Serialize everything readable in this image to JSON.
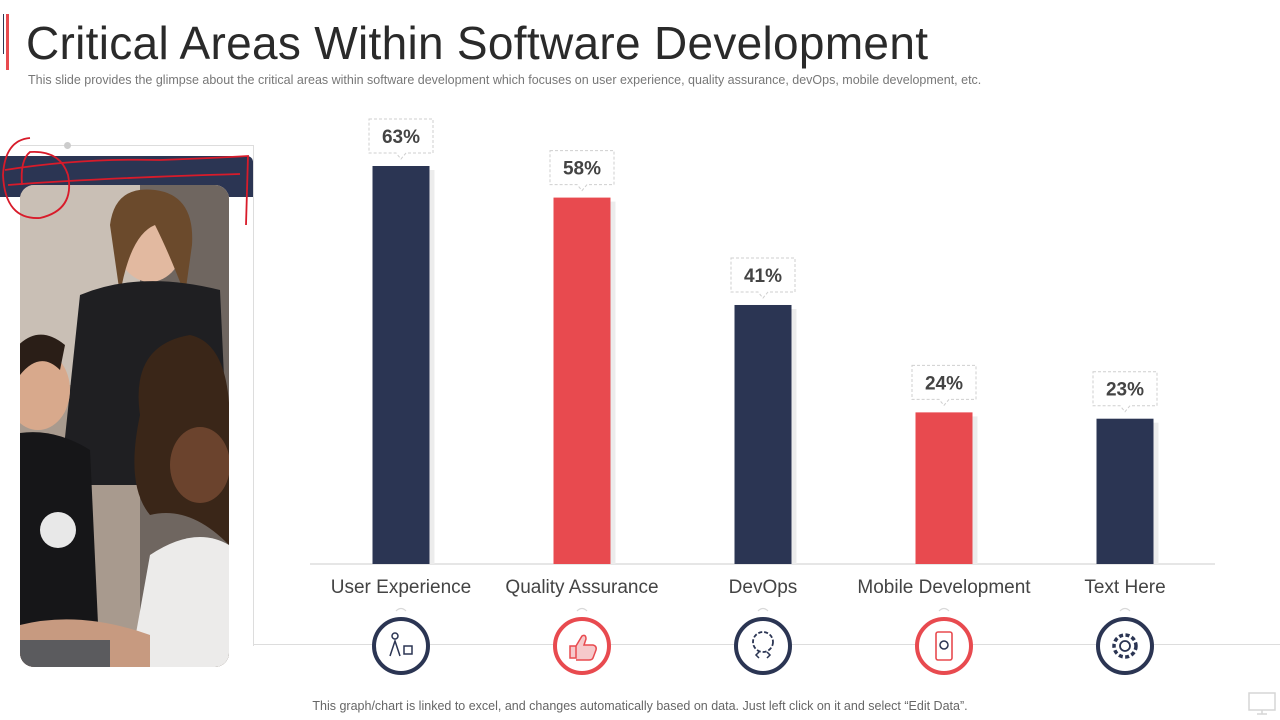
{
  "slide": {
    "title": "Critical Areas Within Software Development",
    "subtitle": "This slide provides  the glimpse about the critical areas within software development  which focuses on user experience, quality assurance, devOps,  mobile development,  etc.",
    "footer": "This graph/chart is linked to excel, and changes automatically based on data.  Just left click on it and select “Edit Data”."
  },
  "colors": {
    "navy": "#2b3553",
    "red": "#e84a4f",
    "axis": "#dddddd"
  },
  "chart_data": {
    "type": "bar",
    "title": "",
    "xlabel": "",
    "ylabel": "",
    "ylim": [
      0,
      70
    ],
    "grid": false,
    "categories": [
      "User Experience",
      "Quality Assurance",
      "DevOps",
      "Mobile Development",
      "Text Here"
    ],
    "values": [
      63,
      58,
      41,
      24,
      23
    ],
    "labels": [
      "63%",
      "58%",
      "41%",
      "24%",
      "23%"
    ],
    "bar_colors": [
      "#2b3553",
      "#e84a4f",
      "#2b3553",
      "#e84a4f",
      "#2b3553"
    ],
    "icons": [
      "ux-people-icon",
      "thumbs-up-icon",
      "devops-gear-code-icon",
      "mobile-settings-icon",
      "gear-icon"
    ]
  }
}
